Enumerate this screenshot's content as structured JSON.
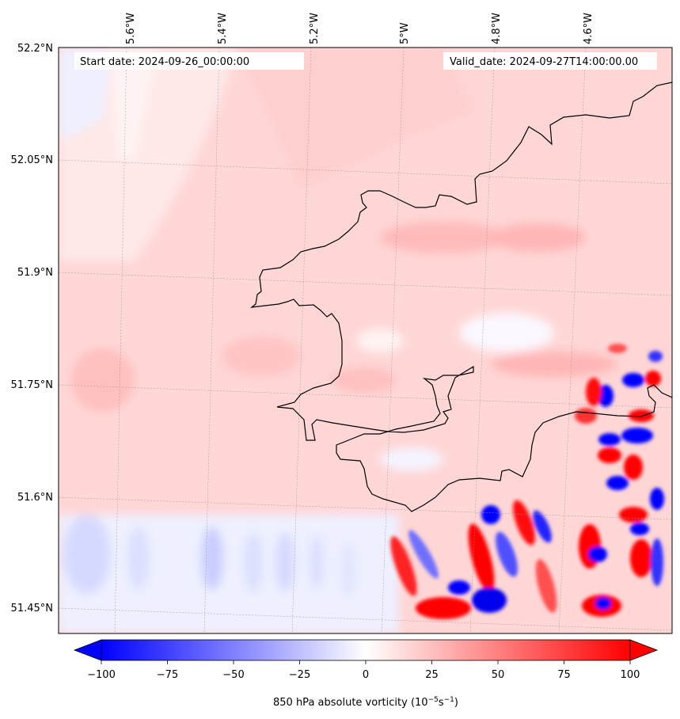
{
  "header": {
    "start_date": "Start date: 2024-09-26_00:00:00",
    "valid_date": "Valid_date: 2024-09-27T14:00:00.00"
  },
  "map": {
    "lon_labels": [
      "5.6°W",
      "5.4°W",
      "5.2°W",
      "5°W",
      "4.8°W",
      "4.6°W"
    ],
    "lat_labels": [
      "52.2°N",
      "52.05°N",
      "51.9°N",
      "51.75°N",
      "51.6°N",
      "51.45°N"
    ],
    "background_color": "#ffd0d0",
    "coastline_color": "#000000"
  },
  "colorbar": {
    "label_prefix": "850 hPa absolute vorticity (10",
    "label_exp1": "−5",
    "label_mid": "s",
    "label_exp2": "−1",
    "label_suffix": ")",
    "ticks": [
      "−100",
      "−75",
      "−50",
      "−25",
      "0",
      "25",
      "50",
      "75",
      "100"
    ],
    "min_color": "#0000ff",
    "mid_color": "#ffffff",
    "max_color": "#ff0000"
  }
}
